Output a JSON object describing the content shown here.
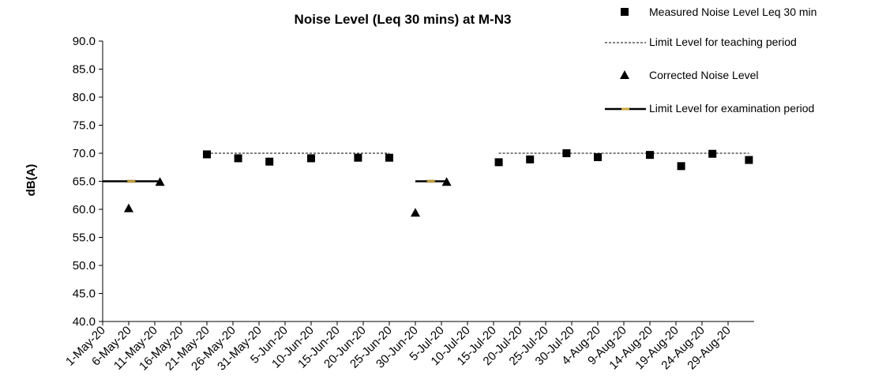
{
  "chart_data": {
    "type": "scatter",
    "title": "Noise Level (Leq 30 mins) at M-N3",
    "xlabel": "",
    "ylabel": "dB(A)",
    "ylim": [
      40,
      90
    ],
    "y_ticks": [
      "40.0",
      "45.0",
      "50.0",
      "55.0",
      "60.0",
      "65.0",
      "70.0",
      "75.0",
      "80.0",
      "85.0",
      "90.0"
    ],
    "xlim": [
      "2020-05-01",
      "2020-09-03"
    ],
    "x_ticks": [
      {
        "date": "2020-05-01",
        "label": "1-May-20"
      },
      {
        "date": "2020-05-06",
        "label": "6-May-20"
      },
      {
        "date": "2020-05-11",
        "label": "11-May-20"
      },
      {
        "date": "2020-05-16",
        "label": "16-May-20"
      },
      {
        "date": "2020-05-21",
        "label": "21-May-20"
      },
      {
        "date": "2020-05-26",
        "label": "26-May-20"
      },
      {
        "date": "2020-05-31",
        "label": "31-May-20"
      },
      {
        "date": "2020-06-05",
        "label": "5-Jun-20"
      },
      {
        "date": "2020-06-10",
        "label": "10-Jun-20"
      },
      {
        "date": "2020-06-15",
        "label": "15-Jun-20"
      },
      {
        "date": "2020-06-20",
        "label": "20-Jun-20"
      },
      {
        "date": "2020-06-25",
        "label": "25-Jun-20"
      },
      {
        "date": "2020-06-30",
        "label": "30-Jun-20"
      },
      {
        "date": "2020-07-05",
        "label": "5-Jul-20"
      },
      {
        "date": "2020-07-10",
        "label": "10-Jul-20"
      },
      {
        "date": "2020-07-15",
        "label": "15-Jul-20"
      },
      {
        "date": "2020-07-20",
        "label": "20-Jul-20"
      },
      {
        "date": "2020-07-25",
        "label": "25-Jul-20"
      },
      {
        "date": "2020-07-30",
        "label": "30-Jul-20"
      },
      {
        "date": "2020-08-04",
        "label": "4-Aug-20"
      },
      {
        "date": "2020-08-09",
        "label": "9-Aug-20"
      },
      {
        "date": "2020-08-14",
        "label": "14-Aug-20"
      },
      {
        "date": "2020-08-19",
        "label": "19-Aug-20"
      },
      {
        "date": "2020-08-24",
        "label": "24-Aug-20"
      },
      {
        "date": "2020-08-29",
        "label": "29-Aug-20"
      }
    ],
    "grid": false,
    "legend_position": "top-right",
    "series": [
      {
        "name": "Measured Noise Level Leq 30 min",
        "kind": "points",
        "marker": "square",
        "color": "#000000",
        "points": [
          {
            "x": "2020-05-21",
            "y": 69.8
          },
          {
            "x": "2020-05-27",
            "y": 69.1
          },
          {
            "x": "2020-06-02",
            "y": 68.5
          },
          {
            "x": "2020-06-10",
            "y": 69.1
          },
          {
            "x": "2020-06-19",
            "y": 69.2
          },
          {
            "x": "2020-06-25",
            "y": 69.2
          },
          {
            "x": "2020-07-16",
            "y": 68.4
          },
          {
            "x": "2020-07-22",
            "y": 68.9
          },
          {
            "x": "2020-07-29",
            "y": 70.0
          },
          {
            "x": "2020-08-04",
            "y": 69.3
          },
          {
            "x": "2020-08-14",
            "y": 69.7
          },
          {
            "x": "2020-08-20",
            "y": 67.7
          },
          {
            "x": "2020-08-26",
            "y": 69.9
          },
          {
            "x": "2020-09-02",
            "y": 68.8
          }
        ]
      },
      {
        "name": "Limit Level for teaching period",
        "kind": "line",
        "dash": true,
        "color": "#000000",
        "segments": [
          [
            {
              "x": "2020-05-21",
              "y": 70
            },
            {
              "x": "2020-06-25",
              "y": 70
            }
          ],
          [
            {
              "x": "2020-07-16",
              "y": 70
            },
            {
              "x": "2020-09-02",
              "y": 70
            }
          ]
        ]
      },
      {
        "name": "Corrected Noise Level",
        "kind": "points",
        "marker": "triangle",
        "color": "#000000",
        "points": [
          {
            "x": "2020-05-06",
            "y": 60.2
          },
          {
            "x": "2020-05-12",
            "y": 64.9
          },
          {
            "x": "2020-06-30",
            "y": 59.4
          },
          {
            "x": "2020-07-06",
            "y": 64.9
          }
        ]
      },
      {
        "name": "Limit Level for examination period",
        "kind": "line",
        "dash": false,
        "color": "#000000",
        "marker_color": "#c8a43c",
        "segments": [
          [
            {
              "x": "2020-05-01",
              "y": 65
            },
            {
              "x": "2020-05-12",
              "y": 65
            }
          ],
          [
            {
              "x": "2020-06-30",
              "y": 65
            },
            {
              "x": "2020-07-06",
              "y": 65
            }
          ]
        ]
      }
    ]
  }
}
